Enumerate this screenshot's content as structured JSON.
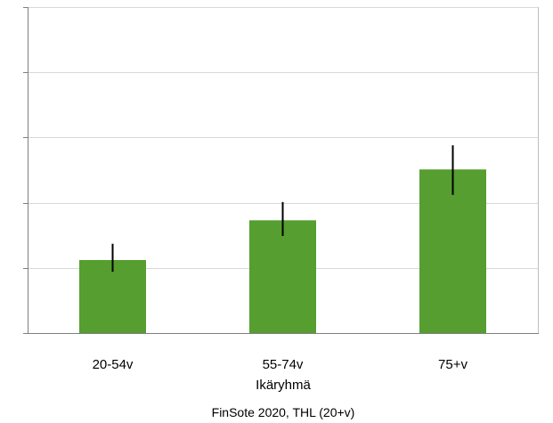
{
  "chart_data": {
    "type": "bar",
    "categories": [
      "20-54v",
      "55-74v",
      "75+v"
    ],
    "values": [
      11.2,
      17.3,
      25.1
    ],
    "error_low": [
      9.4,
      14.9,
      21.2
    ],
    "error_high": [
      13.7,
      20.1,
      28.8
    ],
    "ylim": [
      0,
      50
    ],
    "ytick_count": 6,
    "grid": true,
    "xlabel": "Ikäryhmä",
    "ylabel": "",
    "title": "",
    "source": "FinSote 2020, THL (20+v)",
    "bar_color": "#559e2f",
    "errorbar_color": "#000000",
    "grid_color": "#d9d9d9"
  }
}
